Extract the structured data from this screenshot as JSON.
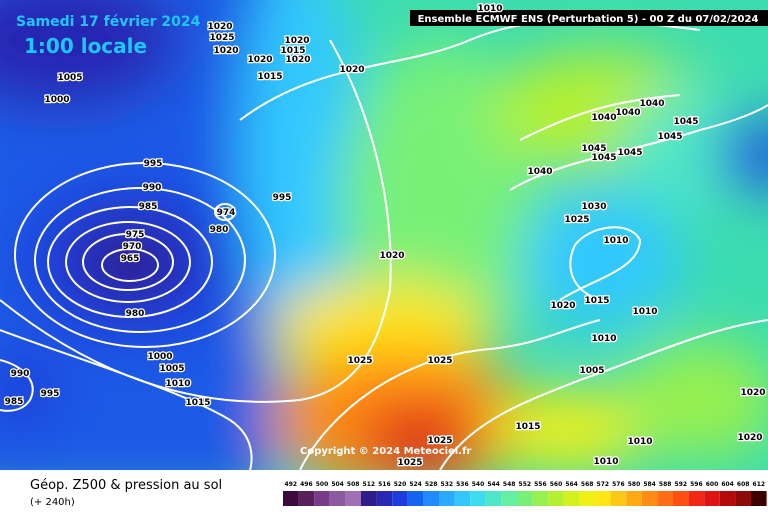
{
  "header": {
    "date": "Samedi 17 février 2024",
    "time": "1:00 locale",
    "run": "Ensemble ECMWF ENS  (Perturbation 5)  -  00 Z du 07/02/2024"
  },
  "footer": {
    "title": "Géop. Z500 & pression au sol",
    "lead": "(+ 240h)",
    "copyright": "Copyright © 2024 Meteociel.fr"
  },
  "isobar_labels": [
    1020,
    1025,
    1020,
    1020,
    1015,
    1020,
    1020,
    1015,
    1020,
    1005,
    1000,
    995,
    990,
    985,
    975,
    970,
    965,
    974,
    980,
    995,
    980,
    1020,
    1000,
    1005,
    1010,
    1015,
    990,
    985,
    995,
    1025,
    1025,
    1025,
    1025,
    1015,
    1010,
    1010,
    1020,
    1020,
    1010,
    1040,
    1040,
    1040,
    1045,
    1045,
    1045,
    1045,
    1045,
    1040,
    1030,
    1025,
    1010,
    1020,
    1015,
    1010,
    1010,
    1005
  ],
  "legend": {
    "values": [
      492,
      496,
      500,
      504,
      508,
      512,
      516,
      520,
      524,
      528,
      532,
      536,
      540,
      544,
      548,
      552,
      556,
      560,
      564,
      568,
      572,
      576,
      580,
      584,
      588,
      592,
      596,
      600,
      604,
      608,
      612
    ],
    "colors": [
      "#3c0a3c",
      "#5a1e5a",
      "#7a3a8a",
      "#8c5aa0",
      "#a070b4",
      "#2e1e8c",
      "#2828b4",
      "#1e3cdc",
      "#1464f0",
      "#1e8cff",
      "#28aaff",
      "#32c8ff",
      "#3cdcf0",
      "#50e6c8",
      "#64f0a0",
      "#78f078",
      "#96f050",
      "#b4f032",
      "#d2f01e",
      "#f0f014",
      "#ffe614",
      "#ffc814",
      "#ffaa14",
      "#ff8c14",
      "#ff6e14",
      "#ff5014",
      "#f02814",
      "#dc1414",
      "#b40a0a",
      "#8c0a0a",
      "#3c0000"
    ]
  }
}
